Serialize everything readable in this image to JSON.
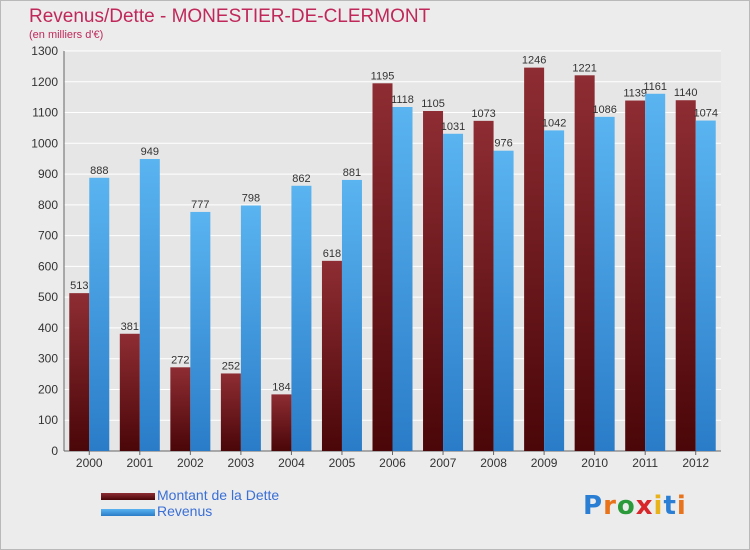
{
  "header": {
    "title": "Revenus/Dette - MONESTIER-DE-CLERMONT",
    "subtitle": "(en milliers d'€)"
  },
  "legend": {
    "dette_label": "Montant de la Dette",
    "revenus_label": "Revenus"
  },
  "logo": {
    "letters": [
      "P",
      "r",
      "o",
      "x",
      "i",
      "t",
      "i"
    ],
    "colors": [
      "#2a7fd4",
      "#e8731a",
      "#2a9a3a",
      "#d8262a",
      "#e8b21a",
      "#2a7fd4",
      "#e8731a"
    ]
  },
  "colors": {
    "dette": "#7d2026",
    "revenus": "#4aa6e6",
    "title": "#c0285a",
    "background": "#ececec"
  },
  "chart_data": {
    "type": "bar",
    "title": "Revenus/Dette - MONESTIER-DE-CLERMONT",
    "ylabel": "(en milliers d'€)",
    "xlabel": "",
    "categories": [
      "2000",
      "2001",
      "2002",
      "2003",
      "2004",
      "2005",
      "2006",
      "2007",
      "2008",
      "2009",
      "2010",
      "2011",
      "2012"
    ],
    "series": [
      {
        "name": "Montant de la Dette",
        "values": [
          513,
          381,
          272,
          252,
          184,
          618,
          1195,
          1105,
          1073,
          1246,
          1221,
          1139,
          1140
        ]
      },
      {
        "name": "Revenus",
        "values": [
          888,
          949,
          777,
          798,
          862,
          881,
          1118,
          1031,
          976,
          1042,
          1086,
          1161,
          1074
        ]
      }
    ],
    "ylim": [
      0,
      1300
    ],
    "yticks": [
      0,
      100,
      200,
      300,
      400,
      500,
      600,
      700,
      800,
      900,
      1000,
      1100,
      1200,
      1300
    ],
    "grid": true,
    "legend_position": "bottom-left"
  }
}
